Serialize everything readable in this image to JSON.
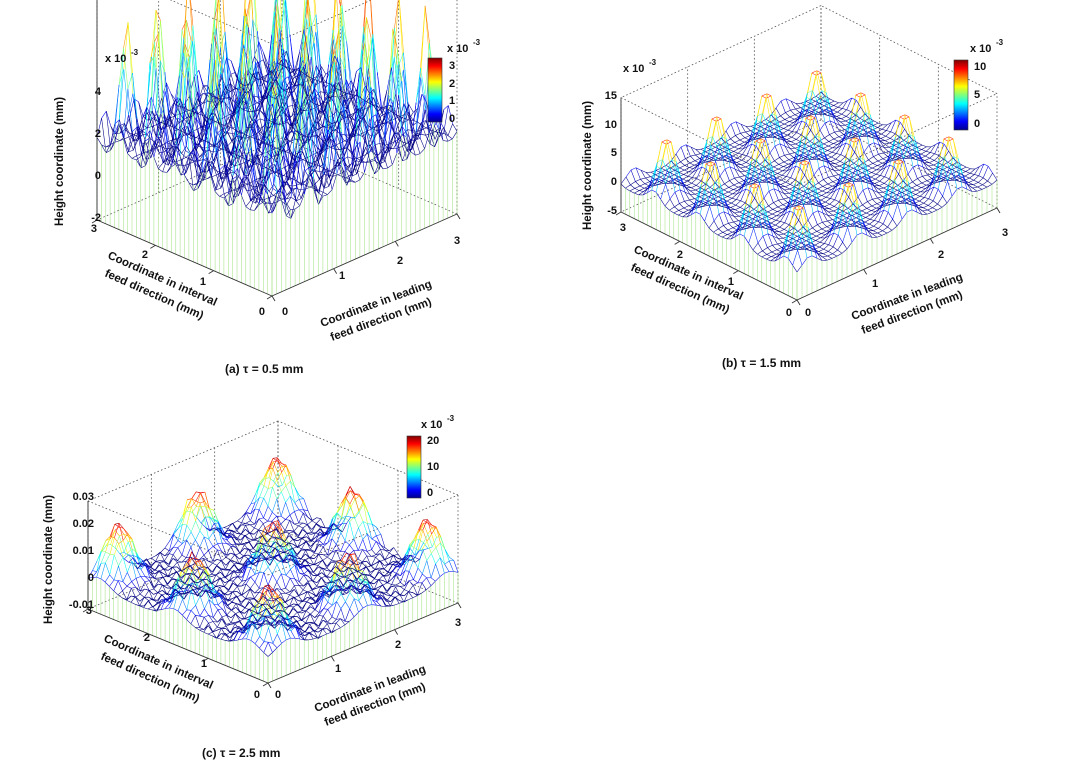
{
  "figure": {
    "panels": [
      {
        "caption": "(a)  τ = 0.5 mm",
        "exp_label": "x 10",
        "exp_power": "-3",
        "z_label": "Height coordinate (mm)",
        "x_label": [
          "Coordinate in leading",
          "feed direction (mm)"
        ],
        "y_label": [
          "Coordinate in interval",
          "feed direction (mm)"
        ],
        "x_ticks": [
          "0",
          "1",
          "2",
          "3"
        ],
        "y_ticks": [
          "0",
          "1",
          "2",
          "3"
        ],
        "z_ticks": [
          "-2",
          "0",
          "2",
          "4"
        ],
        "colorbar": {
          "exp_label": "x 10",
          "exp_power": "-3",
          "ticks": [
            "0",
            "1",
            "2",
            "3"
          ]
        }
      },
      {
        "caption": "(b)  τ = 1.5 mm",
        "exp_label": "x 10",
        "exp_power": "-3",
        "z_label": "Height coordinate (mm)",
        "x_label": [
          "Coordinate in leading",
          "feed direction (mm)"
        ],
        "y_label": [
          "Coordinate in interval",
          "feed direction (mm)"
        ],
        "x_ticks": [
          "0",
          "1",
          "2",
          "3"
        ],
        "y_ticks": [
          "0",
          "1",
          "2",
          "3"
        ],
        "z_ticks": [
          "-5",
          "0",
          "5",
          "10",
          "15"
        ],
        "colorbar": {
          "exp_label": "x 10",
          "exp_power": "-3",
          "ticks": [
            "0",
            "5",
            "10"
          ]
        }
      },
      {
        "caption": "(c)  τ = 2.5 mm",
        "exp_label": "",
        "exp_power": "",
        "z_label": "Height coordinate (mm)",
        "x_label": [
          "Coordinate in leading",
          "feed direction (mm)"
        ],
        "y_label": [
          "Coordinate in interval",
          "feed direction (mm)"
        ],
        "x_ticks": [
          "0",
          "1",
          "2",
          "3"
        ],
        "y_ticks": [
          "0",
          "1",
          "2",
          "3"
        ],
        "z_ticks": [
          "-0.01",
          "0",
          "0.01",
          "0.02",
          "0.03"
        ],
        "colorbar": {
          "exp_label": "x 10",
          "exp_power": "-3",
          "ticks": [
            "0",
            "10",
            "20"
          ]
        }
      }
    ]
  },
  "chart_data": [
    {
      "type": "surface",
      "title": "(a)  τ = 0.5 mm",
      "xlabel": "Coordinate in leading feed direction (mm)",
      "ylabel": "Coordinate in interval feed direction (mm)",
      "zlabel": "Height coordinate (mm)",
      "xlim": [
        0,
        3
      ],
      "ylim": [
        0,
        3
      ],
      "zlim": [
        -0.002,
        0.004
      ],
      "z_scale": "x 10^-3",
      "tau_mm": 0.5,
      "peak_spacing_mm": 0.5,
      "peak_height_mm": 0.0035,
      "base_height_mm": 0.0,
      "colorbar_range": [
        0,
        0.0035
      ]
    },
    {
      "type": "surface",
      "title": "(b)  τ = 1.5 mm",
      "xlabel": "Coordinate in leading feed direction (mm)",
      "ylabel": "Coordinate in interval feed direction (mm)",
      "zlabel": "Height coordinate (mm)",
      "xlim": [
        0,
        3
      ],
      "ylim": [
        0,
        3
      ],
      "zlim": [
        -0.005,
        0.015
      ],
      "z_scale": "x 10^-3",
      "tau_mm": 1.5,
      "peak_spacing_mm": 0.75,
      "peak_height_mm": 0.011,
      "base_height_mm": 0.0,
      "colorbar_range": [
        0,
        0.011
      ]
    },
    {
      "type": "surface",
      "title": "(c)  τ = 2.5 mm",
      "xlabel": "Coordinate in leading feed direction (mm)",
      "ylabel": "Coordinate in interval feed direction (mm)",
      "zlabel": "Height coordinate (mm)",
      "xlim": [
        0,
        3
      ],
      "ylim": [
        0,
        3
      ],
      "zlim": [
        -0.01,
        0.03
      ],
      "z_scale": "",
      "tau_mm": 2.5,
      "peak_spacing_mm": 1.25,
      "peak_height_mm": 0.021,
      "base_height_mm": 0.0,
      "colorbar_range": [
        0,
        0.021
      ]
    }
  ]
}
